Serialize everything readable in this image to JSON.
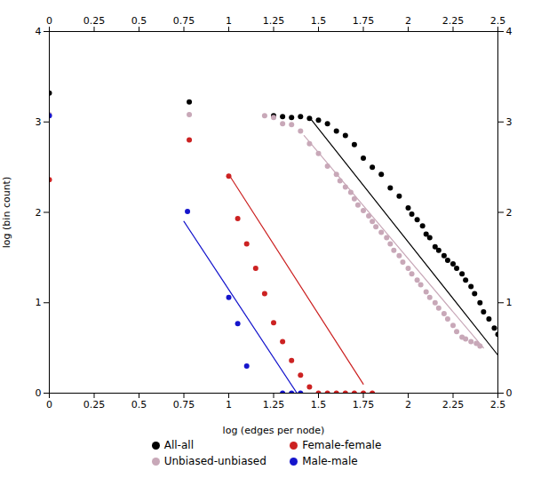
{
  "chart_data": {
    "type": "scatter",
    "xlabel": "log (edges per node)",
    "ylabel": "log (bin count)",
    "xlim": [
      0,
      2.5
    ],
    "ylim": [
      0,
      4
    ],
    "xticks": [
      0,
      0.25,
      0.5,
      0.75,
      1,
      1.25,
      1.5,
      1.75,
      2,
      2.25,
      2.5
    ],
    "yticks": [
      0,
      1,
      2,
      3,
      4
    ],
    "grid": false,
    "legend": "bottom",
    "series": [
      {
        "name": "All-all",
        "color": "#000000",
        "marker": "circle",
        "x": [
          0.0,
          0.78,
          1.25,
          1.3,
          1.35,
          1.4,
          1.45,
          1.5,
          1.55,
          1.6,
          1.65,
          1.7,
          1.75,
          1.8,
          1.85,
          1.9,
          1.95,
          2.0,
          2.02,
          2.05,
          2.08,
          2.1,
          2.12,
          2.15,
          2.17,
          2.2,
          2.22,
          2.25,
          2.27,
          2.3,
          2.32,
          2.35,
          2.37,
          2.4,
          2.42,
          2.45,
          2.48,
          2.5
        ],
        "values": [
          3.32,
          3.22,
          3.07,
          3.06,
          3.05,
          3.06,
          3.04,
          3.02,
          2.98,
          2.9,
          2.85,
          2.75,
          2.6,
          2.5,
          2.42,
          2.27,
          2.18,
          2.05,
          1.98,
          1.92,
          1.85,
          1.76,
          1.72,
          1.62,
          1.58,
          1.52,
          1.47,
          1.43,
          1.38,
          1.32,
          1.25,
          1.18,
          1.1,
          1.0,
          0.9,
          0.82,
          0.72,
          0.65
        ],
        "fit_x": [
          1.45,
          2.5
        ],
        "fit_values": [
          3.05,
          0.42
        ]
      },
      {
        "name": "Unbiased-unbiased",
        "color": "#c8a8b8",
        "marker": "circle",
        "x": [
          0.0,
          0.78,
          1.2,
          1.25,
          1.3,
          1.35,
          1.4,
          1.45,
          1.5,
          1.55,
          1.6,
          1.62,
          1.65,
          1.68,
          1.7,
          1.72,
          1.75,
          1.78,
          1.8,
          1.82,
          1.85,
          1.88,
          1.9,
          1.92,
          1.95,
          1.97,
          2.0,
          2.02,
          2.05,
          2.07,
          2.1,
          2.12,
          2.15,
          2.17,
          2.2,
          2.22,
          2.25,
          2.27,
          2.3,
          2.32,
          2.35,
          2.38,
          2.4
        ],
        "values": [
          3.08,
          3.08,
          3.07,
          3.05,
          2.98,
          2.97,
          2.9,
          2.76,
          2.65,
          2.51,
          2.42,
          2.35,
          2.28,
          2.22,
          2.15,
          2.08,
          2.02,
          1.96,
          1.9,
          1.84,
          1.78,
          1.72,
          1.65,
          1.58,
          1.52,
          1.45,
          1.38,
          1.32,
          1.25,
          1.2,
          1.12,
          1.06,
          1.0,
          0.94,
          0.88,
          0.82,
          0.75,
          0.68,
          0.62,
          0.6,
          0.57,
          0.55,
          0.52
        ],
        "fit_x": [
          1.42,
          2.42
        ],
        "fit_values": [
          2.85,
          0.5
        ]
      },
      {
        "name": "Female-female",
        "color": "#cc2222",
        "marker": "circle",
        "x": [
          0.0,
          0.78,
          1.0,
          1.05,
          1.1,
          1.15,
          1.2,
          1.25,
          1.3,
          1.35,
          1.4,
          1.45,
          1.5,
          1.55,
          1.6,
          1.65,
          1.7,
          1.75,
          1.8
        ],
        "values": [
          2.36,
          2.8,
          2.4,
          1.93,
          1.65,
          1.38,
          1.1,
          0.78,
          0.57,
          0.36,
          0.2,
          0.07,
          0.0,
          0.0,
          0.0,
          0.0,
          0.0,
          0.0,
          0.0
        ],
        "fit_x": [
          1.0,
          1.75
        ],
        "fit_values": [
          2.42,
          0.1
        ]
      },
      {
        "name": "Male-male",
        "color": "#1515cc",
        "marker": "circle",
        "x": [
          0.0,
          0.77,
          1.0,
          1.05,
          1.1,
          1.3,
          1.35,
          1.4
        ],
        "values": [
          3.07,
          2.01,
          1.06,
          0.77,
          0.3,
          0.0,
          0.0,
          0.0
        ],
        "fit_x": [
          0.75,
          1.38
        ],
        "fit_values": [
          1.9,
          0.0
        ]
      }
    ]
  }
}
